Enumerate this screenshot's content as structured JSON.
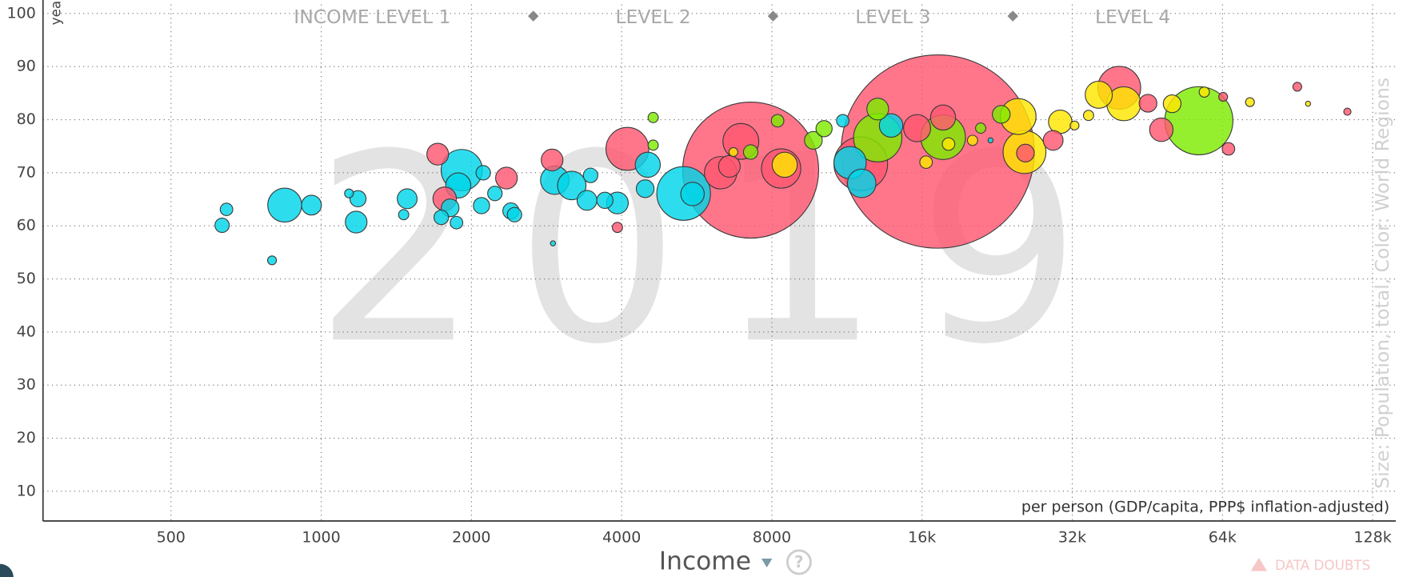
{
  "chart_data": {
    "type": "scatter",
    "year": "2019",
    "level_labels": [
      "INCOME LEVEL 1",
      "LEVEL 2",
      "LEVEL 3",
      "LEVEL 4"
    ],
    "xlabel": "Income",
    "xlabel_note": "per person (GDP/capita, PPP$ inflation-adjusted)",
    "ylabel": "years",
    "size_color_note": "Size: Population, total, Color: World Regions",
    "help": "?",
    "data_doubts": "DATA DOUBTS",
    "xscale": "log",
    "grid": true,
    "xlim": [
      277,
      142400
    ],
    "ylim": [
      4.4,
      101.7
    ],
    "xticks": [
      500,
      1000,
      2000,
      4000,
      8000,
      {
        "value": 16000,
        "label": "16k"
      },
      {
        "value": 32000,
        "label": "32k"
      },
      {
        "value": 64000,
        "label": "64k"
      },
      {
        "value": 128000,
        "label": "128k"
      }
    ],
    "yticks": [
      10,
      20,
      30,
      40,
      50,
      60,
      70,
      80,
      90,
      100
    ],
    "series": [
      {
        "color": "#00d5e9",
        "x": [
          633,
          646,
          845,
          956,
          797,
          1175,
          1185,
          1137,
          1487,
          1463,
          1740,
          1813,
          1913,
          1882,
          1867,
          2112,
          2095,
          2229,
          2400,
          2440,
          2938,
          3178,
          3409,
          3466,
          3923,
          3703,
          4459,
          4513,
          5325,
          5548,
          2914,
          11478,
          12110,
          11100,
          13870,
          21950
        ],
        "values": [
          60.1,
          63.1,
          63.9,
          63.9,
          53.5,
          60.7,
          65.1,
          66.1,
          65.1,
          62.1,
          61.6,
          63.4,
          70.5,
          67.6,
          60.6,
          70.0,
          63.8,
          66.1,
          62.8,
          62.1,
          68.6,
          67.6,
          64.8,
          69.5,
          64.3,
          64.8,
          67.0,
          71.5,
          66.1,
          66.0,
          56.7,
          71.9,
          68.0,
          79.8,
          78.9,
          76.1
        ],
        "sizes": [
          7.8,
          6,
          44,
          15,
          3,
          18,
          10,
          3,
          15,
          4,
          8,
          12,
          65,
          24,
          6,
          8,
          10,
          8,
          10,
          8,
          31,
          31,
          15,
          8,
          18,
          10,
          12,
          24,
          110,
          21,
          1,
          40,
          31,
          6,
          21,
          1
        ]
      },
      {
        "color": "#ff5872",
        "x": [
          7256,
          17200,
          1712,
          1768,
          2351,
          2902,
          4107,
          3923,
          6316,
          6577,
          6935,
          8350,
          12060,
          15640,
          17630,
          25780,
          29300,
          39750,
          48270,
          45390,
          90400,
          113900,
          65800,
          64200
        ],
        "values": [
          70.5,
          74.0,
          73.5,
          65.1,
          69.0,
          72.4,
          74.5,
          59.7,
          70.0,
          71.2,
          75.9,
          70.8,
          71.7,
          78.4,
          80.4,
          73.7,
          76.1,
          86.0,
          78.1,
          83.1,
          86.2,
          81.5,
          74.5,
          84.3
        ],
        "sizes": [
          706,
          1426,
          18,
          21,
          18,
          18,
          70,
          4,
          40,
          18,
          49,
          59,
          110,
          28,
          24,
          12,
          15,
          70,
          21,
          12,
          3,
          2,
          6,
          3
        ]
      },
      {
        "color": "#7feb00",
        "x": [
          13040,
          17630,
          13040,
          23060,
          57400,
          10180,
          9690,
          4627,
          4627,
          8215,
          7256,
          20970
        ],
        "values": [
          76.6,
          76.7,
          82.0,
          81.0,
          79.8,
          78.3,
          76.1,
          80.4,
          75.2,
          79.8,
          73.9,
          78.4
        ],
        "sizes": [
          89,
          76,
          18,
          12,
          177,
          10,
          12,
          4,
          4,
          6,
          8,
          4
        ]
      },
      {
        "color": "#ffe700",
        "x": [
          8490,
          24930,
          25670,
          30270,
          36160,
          40590,
          50740,
          58850,
          72650,
          20200,
          18080,
          16300,
          32340,
          34500,
          95000,
          6700
        ],
        "values": [
          71.5,
          80.6,
          73.9,
          79.6,
          84.7,
          83.0,
          83.0,
          85.2,
          83.3,
          76.1,
          75.4,
          72.0,
          78.9,
          80.8,
          83.0,
          73.9
        ],
        "sizes": [
          24,
          49,
          70,
          21,
          28,
          44,
          12,
          4,
          3,
          4,
          6,
          6,
          3,
          4,
          1,
          3
        ]
      }
    ]
  }
}
